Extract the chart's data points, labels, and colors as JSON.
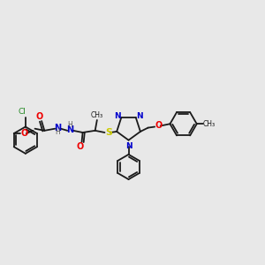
{
  "bg_color": "#e8e8e8",
  "bond_color": "#1a1a1a",
  "colors": {
    "O": "#ee0000",
    "N": "#0000cc",
    "S": "#cccc00",
    "Cl": "#228822",
    "C": "#1a1a1a",
    "H": "#555555"
  },
  "figsize": [
    3.0,
    3.0
  ],
  "dpi": 100
}
